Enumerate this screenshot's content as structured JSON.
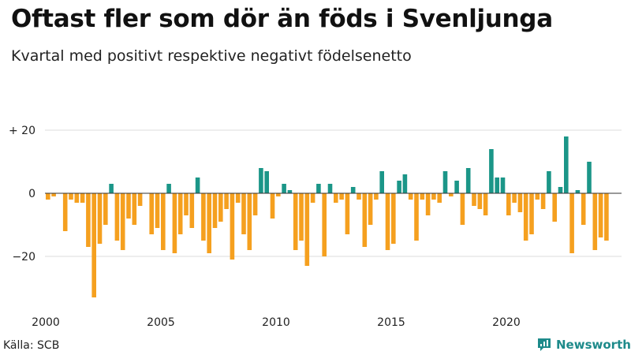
{
  "title": "Oftast fler som dör än föds i Svenljunga",
  "subtitle": "Kvartal med positivt respektive negativt födelsenetto",
  "source": "Källa: SCB",
  "brand": "Newsworthy",
  "colors": {
    "positive": "#1b9688",
    "negative": "#f5a01f",
    "grid": "#dddddd",
    "zero": "#333333",
    "brand": "#1d8a8a"
  },
  "chart_data": {
    "type": "bar",
    "ylim": [
      -35,
      23
    ],
    "y_ticks": [
      {
        "value": 20,
        "label": "+ 20"
      },
      {
        "value": 0,
        "label": "0"
      },
      {
        "value": -20,
        "label": "−20"
      }
    ],
    "x_ticks": [
      {
        "year": 2000,
        "label": "2000"
      },
      {
        "year": 2005,
        "label": "2005"
      },
      {
        "year": 2010,
        "label": "2010"
      },
      {
        "year": 2015,
        "label": "2015"
      },
      {
        "year": 2020,
        "label": "2020"
      }
    ],
    "start_year": 2000,
    "start_quarter": 1,
    "values": [
      -2,
      -1,
      0,
      -12,
      -2,
      -3,
      -3,
      -17,
      -33,
      -16,
      -10,
      3,
      -15,
      -18,
      -8,
      -10,
      -4,
      0,
      -13,
      -11,
      -18,
      3,
      -19,
      -13,
      -7,
      -11,
      5,
      -15,
      -19,
      -11,
      -9,
      -5,
      -21,
      -3,
      -13,
      -18,
      -7,
      8,
      7,
      -8,
      -1,
      3,
      1,
      -18,
      -15,
      -23,
      -3,
      3,
      -20,
      3,
      -3,
      -2,
      -13,
      2,
      -2,
      -17,
      -10,
      -2,
      7,
      -18,
      -16,
      4,
      6,
      -2,
      -15,
      -2,
      -7,
      -2,
      -3,
      7,
      -1,
      4,
      -10,
      8,
      -4,
      -5,
      -7,
      14,
      5,
      5,
      -7,
      -3,
      -6,
      -15,
      -13,
      -2,
      -5,
      7,
      -9,
      2,
      18,
      -19,
      1,
      -10,
      10,
      -18,
      -14,
      -15
    ]
  }
}
